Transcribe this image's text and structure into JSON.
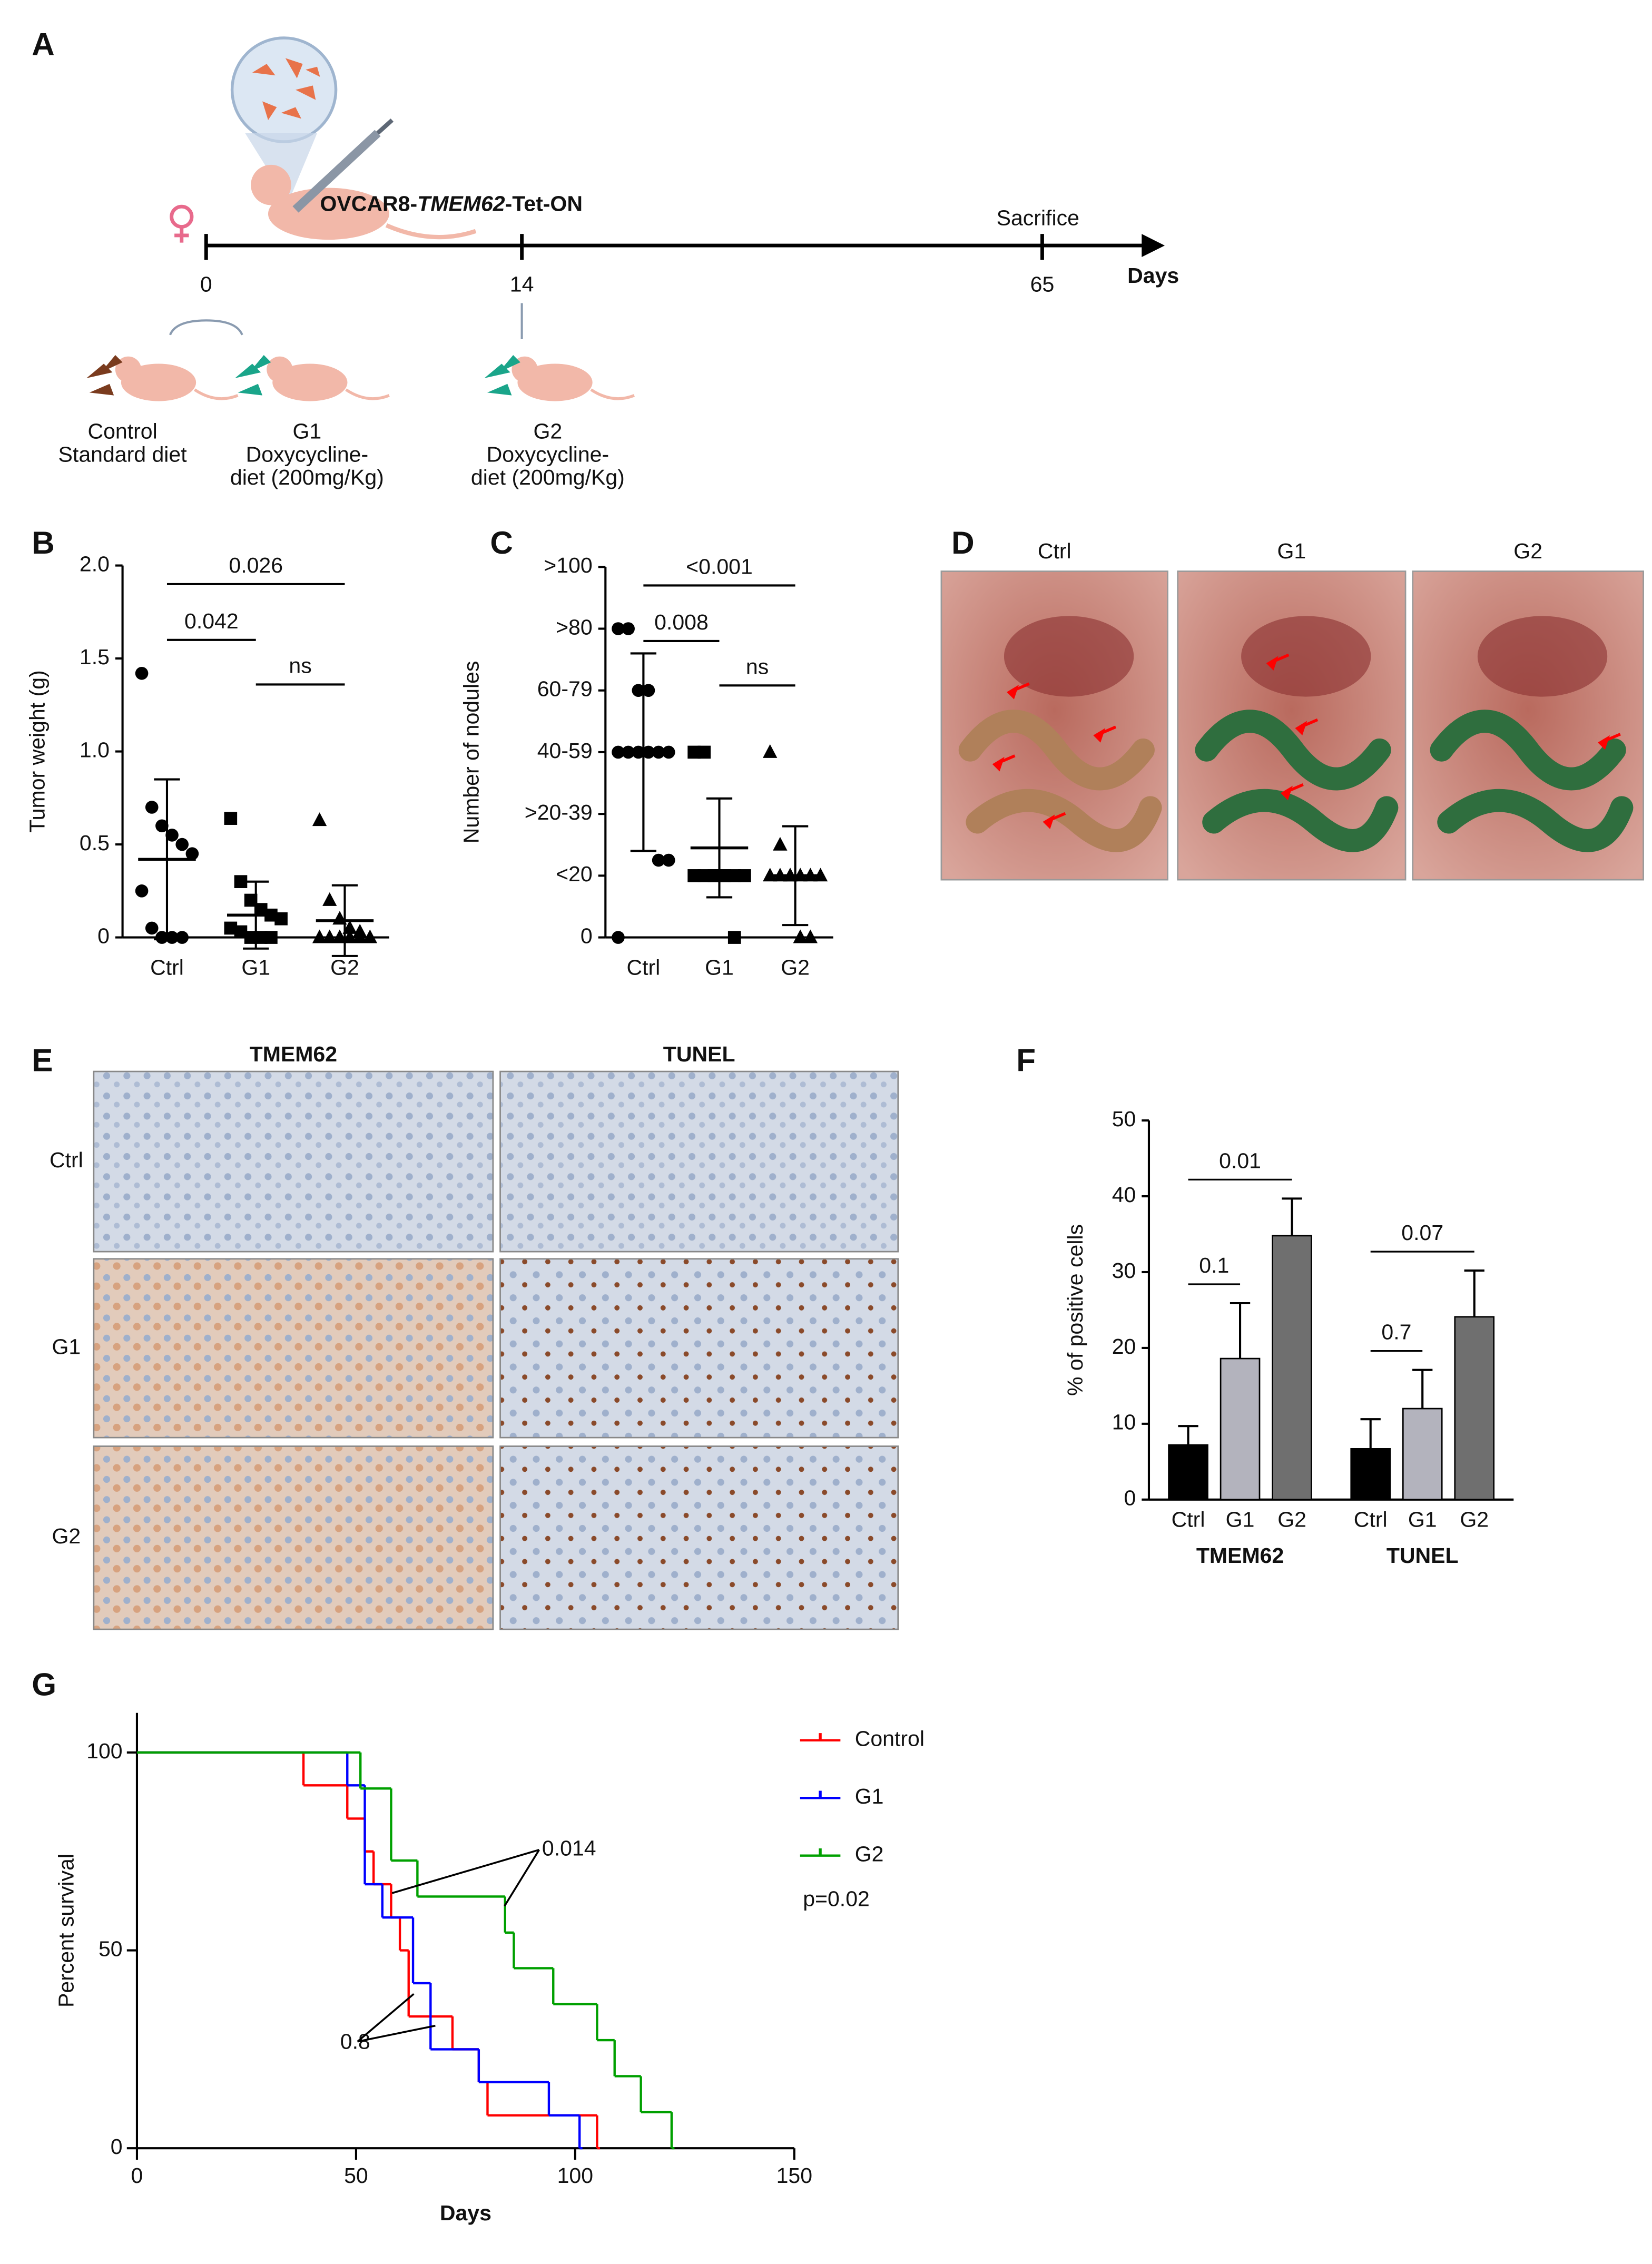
{
  "panel_labels": [
    "A",
    "B",
    "C",
    "D",
    "E",
    "F",
    "G"
  ],
  "timeline": {
    "construct_prefix": "OVCAR8-",
    "construct_gene": "TMEM62",
    "construct_suffix": "-Tet-ON",
    "axis_label": "Days",
    "event": "Sacrifice",
    "day_labels": [
      0,
      14,
      65
    ],
    "groups": [
      {
        "name": "Control",
        "diet": [
          "Standard diet"
        ]
      },
      {
        "name": "G1",
        "diet": [
          "Doxycycline-",
          "diet (200mg/Kg)"
        ]
      },
      {
        "name": "G2",
        "diet": [
          "Doxycycline-",
          "diet (200mg/Kg)"
        ]
      }
    ]
  },
  "photos": {
    "labels": [
      "Ctrl",
      "G1",
      "G2"
    ]
  },
  "histology": {
    "columns": [
      "TMEM62",
      "TUNEL"
    ],
    "rows": [
      "Ctrl",
      "G1",
      "G2"
    ]
  },
  "chart_data": [
    {
      "type": "dotplot",
      "y_label": "Tumor weight (g)",
      "categories": [
        "Ctrl",
        "G1",
        "G2"
      ],
      "markers": [
        "circle",
        "square",
        "triangle"
      ],
      "color": "#000000",
      "points": [
        [
          1.42,
          0.7,
          0.6,
          0.55,
          0.5,
          0.45,
          0.25,
          0.05,
          0,
          0,
          0
        ],
        [
          0.64,
          0.3,
          0.2,
          0.15,
          0.12,
          0.1,
          0.05,
          0.03,
          0,
          0,
          0
        ],
        [
          0.63,
          0.2,
          0.1,
          0.05,
          0.03,
          0,
          0,
          0,
          0,
          0,
          0
        ]
      ],
      "means": [
        0.42,
        0.12,
        0.09
      ],
      "sds": [
        0.43,
        0.18,
        0.19
      ],
      "ylim": [
        0,
        2
      ],
      "yticks": [
        0,
        0.5,
        {
          "value": 1,
          "label": "1.0"
        },
        1.5,
        {
          "value": 2,
          "label": "2.0"
        }
      ],
      "comparisons": [
        {
          "from": "Ctrl",
          "to": "G1",
          "label": "0.042"
        },
        {
          "from": "G1",
          "to": "G2",
          "label": "ns"
        },
        {
          "from": "Ctrl",
          "to": "G2",
          "label": "0.026"
        }
      ]
    },
    {
      "type": "dotplot",
      "y_label": "Number of nodules",
      "categories": [
        "Ctrl",
        "G1",
        "G2"
      ],
      "markers": [
        "circle",
        "square",
        "triangle"
      ],
      "color": "#000000",
      "points": [
        [
          100,
          100,
          80,
          80,
          60,
          60,
          60,
          60,
          60,
          60,
          25,
          25,
          0
        ],
        [
          60,
          60,
          20,
          20,
          20,
          20,
          20,
          20,
          20,
          20,
          0
        ],
        [
          60,
          30,
          20,
          20,
          20,
          20,
          20,
          20,
          20,
          0,
          0
        ]
      ],
      "means": [
        60,
        29,
        20
      ],
      "sds": [
        32,
        16,
        16
      ],
      "ylim": [
        0,
        120
      ],
      "yticks": [
        0,
        {
          "value": 20,
          "label": "<20"
        },
        {
          "value": 40,
          "label": ">20-39"
        },
        {
          "value": 60,
          "label": "40-59"
        },
        {
          "value": 80,
          "label": "60-79"
        },
        {
          "value": 100,
          "label": ">80"
        },
        {
          "value": 120,
          "label": ">100"
        }
      ],
      "comparisons": [
        {
          "from": "Ctrl",
          "to": "G1",
          "label": "0.008"
        },
        {
          "from": "G1",
          "to": "G2",
          "label": "ns"
        },
        {
          "from": "Ctrl",
          "to": "G2",
          "label": "<0.001"
        }
      ]
    },
    {
      "type": "grouped_bar",
      "y_label": "% of positive cells",
      "categories": [
        "TMEM62",
        "TUNEL"
      ],
      "series": [
        {
          "name": "Ctrl",
          "color": "#000000",
          "values": [
            7.2,
            6.7
          ],
          "errors": [
            2.5,
            3.9
          ]
        },
        {
          "name": "G1",
          "color": "#b3b3bd",
          "values": [
            18.6,
            12.0
          ],
          "errors": [
            7.3,
            5.1
          ]
        },
        {
          "name": "G2",
          "color": "#6f6f6f",
          "values": [
            34.8,
            24.1
          ],
          "errors": [
            4.9,
            6.1
          ]
        }
      ],
      "ylim": [
        0,
        50
      ],
      "yticks": [
        0,
        10,
        20,
        30,
        40,
        50
      ],
      "comparisons": [
        {
          "category": "TMEM62",
          "from": "Ctrl",
          "to": "G1",
          "label": "0.1"
        },
        {
          "category": "TMEM62",
          "from": "Ctrl",
          "to": "G2",
          "label": "0.01"
        },
        {
          "category": "TUNEL",
          "from": "Ctrl",
          "to": "G1",
          "label": "0.7"
        },
        {
          "category": "TUNEL",
          "from": "Ctrl",
          "to": "G2",
          "label": "0.07"
        }
      ]
    },
    {
      "type": "survival",
      "x_label": "Days",
      "y_label": "Percent survival",
      "xlim": [
        0,
        150
      ],
      "xticks": [
        0,
        50,
        100,
        150
      ],
      "ylim": [
        0,
        110
      ],
      "yticks": [
        0,
        50,
        100
      ],
      "series": [
        {
          "name": "Control",
          "color": "#ff0000",
          "x": [
            0,
            38,
            48,
            52,
            54,
            58,
            60,
            62,
            72,
            78,
            80,
            105
          ],
          "values": [
            100,
            91.7,
            83.3,
            75,
            66.7,
            58.3,
            50,
            33.3,
            25,
            16.7,
            8.3,
            0
          ]
        },
        {
          "name": "G1",
          "color": "#0000ff",
          "x": [
            0,
            48,
            52,
            56,
            63,
            67,
            78,
            94,
            101
          ],
          "values": [
            100,
            91.7,
            66.7,
            58.3,
            41.7,
            25,
            16.7,
            8.3,
            0
          ]
        },
        {
          "name": "G2",
          "color": "#00a000",
          "x": [
            0,
            51,
            58,
            64,
            84,
            86,
            95,
            105,
            109,
            115,
            122
          ],
          "values": [
            100,
            90.9,
            72.7,
            63.6,
            54.5,
            45.5,
            36.4,
            27.3,
            18.2,
            9.1,
            0
          ]
        }
      ],
      "annotations": [
        "0.014",
        "0.8",
        "p=0.02"
      ]
    }
  ]
}
